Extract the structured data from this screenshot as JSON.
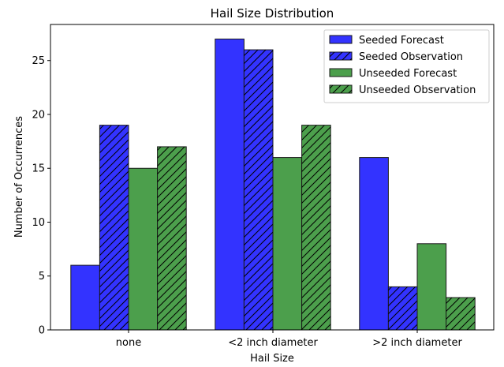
{
  "chart_data": {
    "type": "bar",
    "title": "Hail Size Distribution",
    "xlabel": "Hail Size",
    "ylabel": "Number of Occurrences",
    "categories": [
      "none",
      "<2 inch diameter",
      ">2 inch diameter"
    ],
    "ylim": [
      0,
      28.35
    ],
    "yticks": [
      0,
      5,
      10,
      15,
      20,
      25
    ],
    "grid": false,
    "legend_position": "top-right",
    "series": [
      {
        "name": "Seeded Forecast",
        "values": [
          6,
          27,
          16
        ],
        "color": "#3333ff",
        "hatch": false
      },
      {
        "name": "Seeded Observation",
        "values": [
          19,
          26,
          4
        ],
        "color": "#3333ff",
        "hatch": true
      },
      {
        "name": "Unseeded Forecast",
        "values": [
          15,
          16,
          8
        ],
        "color": "#4c9f4c",
        "hatch": false
      },
      {
        "name": "Unseeded Observation",
        "values": [
          17,
          19,
          3
        ],
        "color": "#4c9f4c",
        "hatch": true
      }
    ]
  }
}
